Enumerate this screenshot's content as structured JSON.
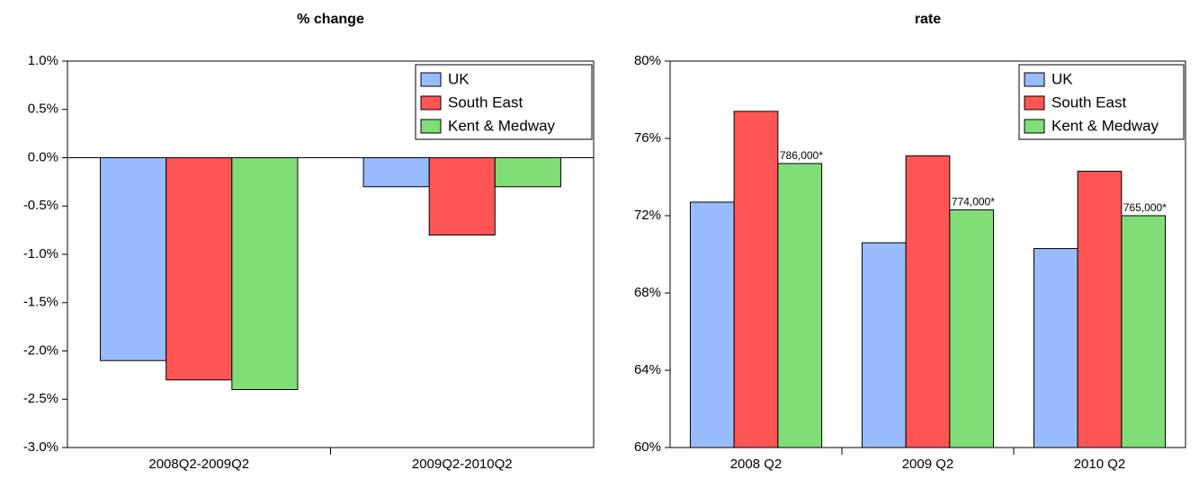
{
  "chart_data": [
    {
      "type": "bar",
      "title": "% change",
      "categories": [
        "2008Q2-2009Q2",
        "2009Q2-2010Q2"
      ],
      "series": [
        {
          "name": "UK",
          "color": "#99bbff",
          "values": [
            -2.1,
            -0.3
          ]
        },
        {
          "name": "South East",
          "color": "#ff5555",
          "values": [
            -2.3,
            -0.8
          ]
        },
        {
          "name": "Kent & Medway",
          "color": "#80dd77",
          "values": [
            -2.4,
            -0.3
          ]
        }
      ],
      "ylim": [
        -3,
        1
      ],
      "yticks": [
        {
          "value": -3,
          "label": "-3.0%"
        },
        {
          "value": -2.5,
          "label": "-2.5%"
        },
        {
          "value": -2,
          "label": "-2.0%"
        },
        {
          "value": -1.5,
          "label": "-1.5%"
        },
        {
          "value": -1,
          "label": "-1.0%"
        },
        {
          "value": -0.5,
          "label": "-0.5%"
        },
        {
          "value": 0,
          "label": "0.0%"
        },
        {
          "value": 0.5,
          "label": "0.5%"
        },
        {
          "value": 1,
          "label": "1.0%"
        }
      ],
      "legend": "upper right"
    },
    {
      "type": "bar",
      "title": "rate",
      "categories": [
        "2008 Q2",
        "2009 Q2",
        "2010 Q2"
      ],
      "series": [
        {
          "name": "UK",
          "color": "#99bbff",
          "values": [
            72.7,
            70.6,
            70.3
          ]
        },
        {
          "name": "South East",
          "color": "#ff5555",
          "values": [
            77.4,
            75.1,
            74.3
          ]
        },
        {
          "name": "Kent & Medway",
          "color": "#80dd77",
          "values": [
            74.7,
            72.3,
            72.0
          ]
        }
      ],
      "annotations": [
        "786,000*",
        "774,000*",
        "765,000*"
      ],
      "ylim": [
        60,
        80
      ],
      "yticks": [
        {
          "value": 60,
          "label": "60%"
        },
        {
          "value": 64,
          "label": "64%"
        },
        {
          "value": 68,
          "label": "68%"
        },
        {
          "value": 72,
          "label": "72%"
        },
        {
          "value": 76,
          "label": "76%"
        },
        {
          "value": 80,
          "label": "80%"
        }
      ],
      "legend": "upper right"
    }
  ]
}
